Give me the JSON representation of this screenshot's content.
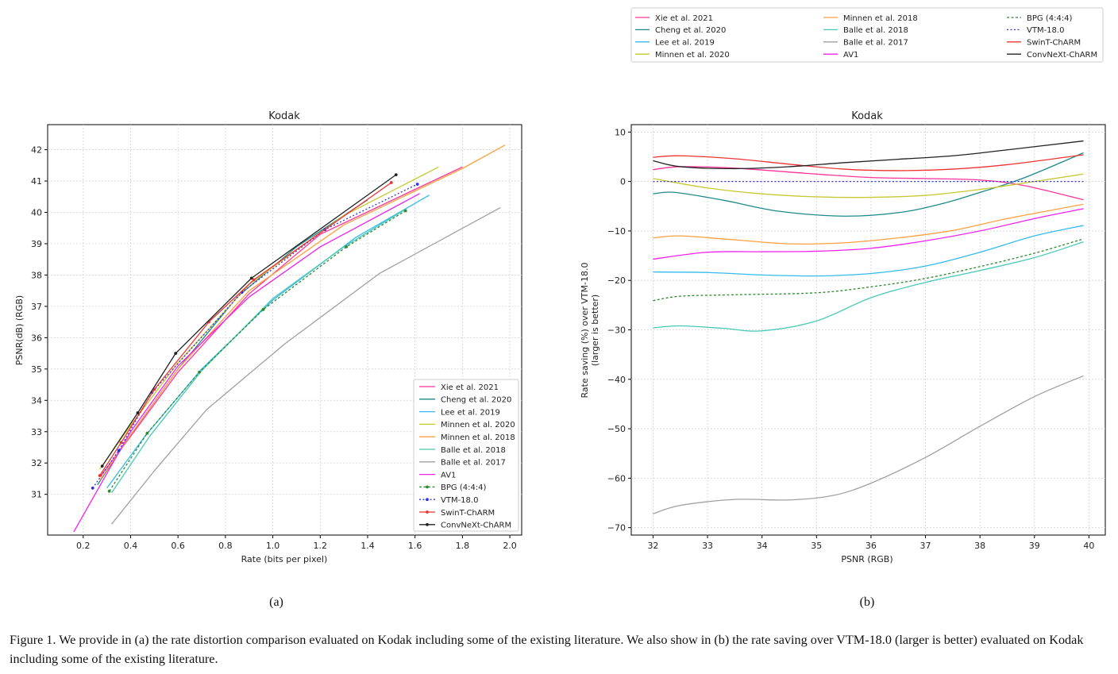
{
  "figure": {
    "caption": "Figure 1. We provide in (a) the rate distortion comparison evaluated on Kodak including some of the existing literature. We also show in (b) the rate saving over VTM-18.0 (larger is better) evaluated on Kodak including some of the existing literature.",
    "panel_a_label": "(a)",
    "panel_b_label": "(b)"
  },
  "chart_data": [
    {
      "type": "line",
      "title": "Kodak",
      "xlabel": "Rate (bits per pixel)",
      "ylabel": "PSNR(dB) (RGB)",
      "xlim": [
        0.05,
        2.05
      ],
      "ylim": [
        29.7,
        42.8
      ],
      "xticks": [
        0.2,
        0.4,
        0.6,
        0.8,
        1.0,
        1.2,
        1.4,
        1.6,
        1.8,
        2.0
      ],
      "xtick_labels": [
        "0.2",
        "0.4",
        "0.6",
        "0.8",
        "1.0",
        "1.2",
        "1.4",
        "1.6",
        "1.8",
        "2.0"
      ],
      "yticks": [
        31,
        32,
        33,
        34,
        35,
        36,
        37,
        38,
        39,
        40,
        41,
        42
      ],
      "ytick_labels": [
        "31",
        "32",
        "33",
        "34",
        "35",
        "36",
        "37",
        "38",
        "39",
        "40",
        "41",
        "42"
      ],
      "grid": true,
      "legend_position": "lower-right",
      "series": [
        {
          "name": "Xie et al. 2021",
          "color": "#ff3399",
          "dash": "",
          "marker": false,
          "points": [
            [
              0.27,
              31.55
            ],
            [
              0.4,
              32.85
            ],
            [
              0.6,
              34.9
            ],
            [
              0.9,
              37.4
            ],
            [
              1.2,
              39.3
            ],
            [
              1.8,
              41.45
            ]
          ]
        },
        {
          "name": "Cheng et al. 2020",
          "color": "#1f8a8a",
          "dash": "",
          "marker": false,
          "points": [
            [
              0.26,
              31.3
            ],
            [
              0.4,
              32.9
            ],
            [
              0.6,
              35.0
            ],
            [
              0.85,
              37.3
            ],
            [
              1.1,
              38.9
            ],
            [
              1.4,
              40.4
            ]
          ]
        },
        {
          "name": "Lee et al. 2019",
          "color": "#33bbee",
          "dash": "",
          "marker": false,
          "points": [
            [
              0.3,
              31.2
            ],
            [
              0.46,
              32.85
            ],
            [
              0.7,
              35.0
            ],
            [
              1.0,
              37.2
            ],
            [
              1.35,
              39.2
            ],
            [
              1.66,
              40.55
            ]
          ]
        },
        {
          "name": "Minnen et al. 2020",
          "color": "#c8c832",
          "dash": "",
          "marker": false,
          "points": [
            [
              0.27,
              31.8
            ],
            [
              0.4,
              33.2
            ],
            [
              0.6,
              35.2
            ],
            [
              0.9,
              37.7
            ],
            [
              1.3,
              39.9
            ],
            [
              1.7,
              41.45
            ]
          ]
        },
        {
          "name": "Minnen et al. 2018",
          "color": "#ffa040",
          "dash": "",
          "marker": false,
          "points": [
            [
              0.27,
              31.45
            ],
            [
              0.4,
              32.9
            ],
            [
              0.6,
              35.0
            ],
            [
              0.9,
              37.5
            ],
            [
              1.3,
              39.6
            ],
            [
              1.8,
              41.4
            ],
            [
              1.98,
              42.15
            ]
          ]
        },
        {
          "name": "Balle et al. 2018",
          "color": "#48c8b8",
          "dash": "",
          "marker": false,
          "points": [
            [
              0.32,
              31.05
            ],
            [
              0.48,
              32.85
            ],
            [
              0.7,
              34.95
            ],
            [
              1.0,
              37.25
            ],
            [
              1.3,
              38.9
            ],
            [
              1.56,
              40.1
            ]
          ]
        },
        {
          "name": "Balle et al. 2017",
          "color": "#a0a0a0",
          "dash": "",
          "marker": false,
          "points": [
            [
              0.32,
              30.05
            ],
            [
              0.5,
              31.75
            ],
            [
              0.72,
              33.7
            ],
            [
              1.05,
              35.8
            ],
            [
              1.45,
              38.05
            ],
            [
              1.96,
              40.15
            ]
          ]
        },
        {
          "name": "AV1",
          "color": "#ee22ee",
          "dash": "",
          "marker": false,
          "points": [
            [
              0.16,
              29.8
            ],
            [
              0.25,
              31.0
            ],
            [
              0.4,
              33.0
            ],
            [
              0.6,
              35.1
            ],
            [
              0.9,
              37.3
            ],
            [
              1.2,
              38.9
            ],
            [
              1.62,
              40.6
            ]
          ]
        },
        {
          "name": "BPG (4:4:4)",
          "color": "#2e8b2e",
          "dash": "3,2.5",
          "marker": true,
          "points": [
            [
              0.31,
              31.1
            ],
            [
              0.47,
              32.95
            ],
            [
              0.69,
              34.9
            ],
            [
              0.96,
              36.9
            ],
            [
              1.31,
              38.9
            ],
            [
              1.56,
              40.05
            ]
          ]
        },
        {
          "name": "VTM-18.0",
          "color": "#3333dd",
          "dash": "2,2.5",
          "marker": true,
          "points": [
            [
              0.24,
              31.2
            ],
            [
              0.35,
              32.4
            ],
            [
              0.49,
              34.25
            ],
            [
              0.87,
              37.45
            ],
            [
              1.22,
              39.45
            ],
            [
              1.61,
              40.9
            ]
          ]
        },
        {
          "name": "SwinT-ChARM",
          "color": "#ee3333",
          "dash": "",
          "marker": true,
          "points": [
            [
              0.27,
              31.6
            ],
            [
              0.36,
              32.65
            ],
            [
              0.5,
              34.35
            ],
            [
              0.73,
              36.5
            ],
            [
              0.92,
              37.85
            ],
            [
              1.5,
              40.95
            ]
          ]
        },
        {
          "name": "ConvNeXt-ChARM",
          "color": "#222222",
          "dash": "",
          "marker": true,
          "points": [
            [
              0.28,
              31.9
            ],
            [
              0.43,
              33.6
            ],
            [
              0.59,
              35.5
            ],
            [
              0.91,
              37.9
            ],
            [
              1.52,
              41.2
            ]
          ]
        }
      ]
    },
    {
      "type": "line",
      "title": "Kodak",
      "xlabel": "PSNR (RGB)",
      "ylabel": "Rate saving (%) over VTM-18.0\n(larger is better)",
      "xlim": [
        31.6,
        40.3
      ],
      "ylim": [
        -71.5,
        11.5
      ],
      "xticks": [
        32,
        33,
        34,
        35,
        36,
        37,
        38,
        39,
        40
      ],
      "xtick_labels": [
        "32",
        "33",
        "34",
        "35",
        "36",
        "37",
        "38",
        "39",
        "40"
      ],
      "yticks": [
        10,
        0,
        -10,
        -20,
        -30,
        -40,
        -50,
        -60,
        -70
      ],
      "ytick_labels": [
        "10",
        "0",
        "−10",
        "−20",
        "−30",
        "−40",
        "−50",
        "−60",
        "−70"
      ],
      "grid": true,
      "legend_position": "above",
      "series": [
        {
          "name": "Xie et al. 2021",
          "color": "#ff3399",
          "dash": "",
          "points": [
            [
              32,
              2.4
            ],
            [
              32.5,
              3.0
            ],
            [
              33.5,
              2.7
            ],
            [
              35,
              1.5
            ],
            [
              36,
              0.8
            ],
            [
              37,
              0.6
            ],
            [
              38,
              0.3
            ],
            [
              38.8,
              -0.8
            ],
            [
              39.9,
              -3.7
            ]
          ]
        },
        {
          "name": "Cheng et al. 2020",
          "color": "#1f8a8a",
          "dash": "",
          "points": [
            [
              32,
              -2.5
            ],
            [
              32.4,
              -2.2
            ],
            [
              33.3,
              -3.8
            ],
            [
              34.3,
              -6.0
            ],
            [
              35.5,
              -7.0
            ],
            [
              36.5,
              -6.3
            ],
            [
              37.3,
              -4.5
            ],
            [
              38.0,
              -2.2
            ],
            [
              38.8,
              0.7
            ],
            [
              39.9,
              5.8
            ]
          ]
        },
        {
          "name": "Lee et al. 2019",
          "color": "#33bbee",
          "dash": "",
          "points": [
            [
              32,
              -18.3
            ],
            [
              33,
              -18.4
            ],
            [
              34,
              -18.9
            ],
            [
              35,
              -19.1
            ],
            [
              36,
              -18.6
            ],
            [
              37,
              -17.1
            ],
            [
              38,
              -14.3
            ],
            [
              39,
              -11.0
            ],
            [
              39.9,
              -8.9
            ]
          ]
        },
        {
          "name": "Minnen et al. 2020",
          "color": "#c8c832",
          "dash": "",
          "points": [
            [
              32,
              0.6
            ],
            [
              33,
              -1.3
            ],
            [
              34,
              -2.5
            ],
            [
              35,
              -3.1
            ],
            [
              36,
              -3.2
            ],
            [
              37,
              -2.8
            ],
            [
              38,
              -1.6
            ],
            [
              39,
              0.0
            ],
            [
              39.9,
              1.5
            ]
          ]
        },
        {
          "name": "Minnen et al. 2018",
          "color": "#ffa040",
          "dash": "",
          "points": [
            [
              32,
              -11.4
            ],
            [
              32.5,
              -11.0
            ],
            [
              33.5,
              -11.8
            ],
            [
              34.5,
              -12.6
            ],
            [
              35.5,
              -12.4
            ],
            [
              36.5,
              -11.4
            ],
            [
              37.5,
              -9.9
            ],
            [
              38.5,
              -7.5
            ],
            [
              39.9,
              -4.6
            ]
          ]
        },
        {
          "name": "Balle et al. 2018",
          "color": "#48c8b8",
          "dash": "",
          "points": [
            [
              32,
              -29.6
            ],
            [
              32.5,
              -29.2
            ],
            [
              33.3,
              -29.7
            ],
            [
              34,
              -30.2
            ],
            [
              35,
              -28.2
            ],
            [
              36,
              -23.5
            ],
            [
              37,
              -20.4
            ],
            [
              38,
              -18.0
            ],
            [
              39,
              -15.4
            ],
            [
              39.9,
              -12.2
            ]
          ]
        },
        {
          "name": "Balle et al. 2017",
          "color": "#a0a0a0",
          "dash": "",
          "points": [
            [
              32,
              -67.2
            ],
            [
              32.5,
              -65.5
            ],
            [
              33.5,
              -64.3
            ],
            [
              34.5,
              -64.4
            ],
            [
              35.3,
              -63.5
            ],
            [
              36,
              -61.0
            ],
            [
              37,
              -55.8
            ],
            [
              38,
              -49.5
            ],
            [
              39,
              -43.5
            ],
            [
              39.9,
              -39.3
            ]
          ]
        },
        {
          "name": "AV1",
          "color": "#ee22ee",
          "dash": "",
          "points": [
            [
              32,
              -15.7
            ],
            [
              33,
              -14.3
            ],
            [
              34,
              -14.2
            ],
            [
              35,
              -14.1
            ],
            [
              36,
              -13.5
            ],
            [
              37,
              -12.0
            ],
            [
              38,
              -10.0
            ],
            [
              39,
              -7.5
            ],
            [
              39.9,
              -5.5
            ]
          ]
        },
        {
          "name": "BPG (4:4:4)",
          "color": "#2e8b2e",
          "dash": "3,2.5",
          "points": [
            [
              32,
              -24.1
            ],
            [
              32.5,
              -23.2
            ],
            [
              33.5,
              -22.9
            ],
            [
              35,
              -22.5
            ],
            [
              36,
              -21.3
            ],
            [
              37,
              -19.6
            ],
            [
              38,
              -17.2
            ],
            [
              39,
              -14.5
            ],
            [
              39.9,
              -11.6
            ]
          ]
        },
        {
          "name": "VTM-18.0",
          "color": "#3333dd",
          "dash": "2,2.5",
          "points": [
            [
              32,
              0
            ],
            [
              39.9,
              0
            ]
          ]
        },
        {
          "name": "SwinT-ChARM",
          "color": "#ee3333",
          "dash": "",
          "points": [
            [
              32,
              4.9
            ],
            [
              32.5,
              5.2
            ],
            [
              33.5,
              4.6
            ],
            [
              34.5,
              3.5
            ],
            [
              35.5,
              2.5
            ],
            [
              36.5,
              2.2
            ],
            [
              37.5,
              2.5
            ],
            [
              38.5,
              3.4
            ],
            [
              39.9,
              5.4
            ]
          ]
        },
        {
          "name": "ConvNeXt-ChARM",
          "color": "#222222",
          "dash": "",
          "points": [
            [
              32,
              4.2
            ],
            [
              32.5,
              3.0
            ],
            [
              33.5,
              2.6
            ],
            [
              34.5,
              3.0
            ],
            [
              35.5,
              3.8
            ],
            [
              36.5,
              4.5
            ],
            [
              37.5,
              5.2
            ],
            [
              38.5,
              6.4
            ],
            [
              39.9,
              8.2
            ]
          ]
        }
      ]
    }
  ]
}
